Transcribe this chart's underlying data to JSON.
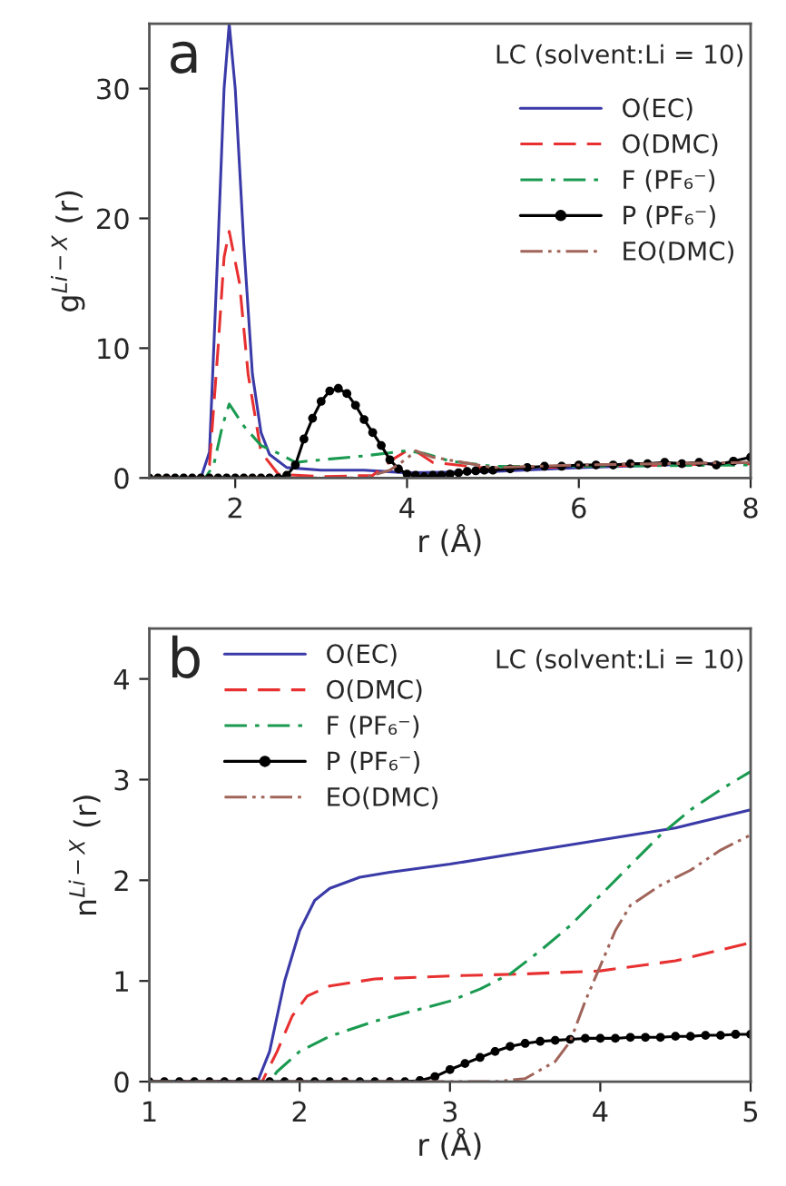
{
  "chart_data": [
    {
      "type": "line",
      "xlabel": "r (Å)",
      "ylabel": "g$^{Li−X}$ (r)",
      "xlim": [
        1,
        8
      ],
      "ylim": [
        0,
        35
      ],
      "xticks": [
        2,
        4,
        6,
        8
      ],
      "yticks": [
        0,
        10,
        20,
        30
      ],
      "grid": false,
      "legend": "top right",
      "annotations": [
        "a",
        "LC (solvent:Li = 10)"
      ],
      "series": [
        {
          "name": "O(EC)",
          "color": "#3a3aa8",
          "line_style": "solid",
          "marker": "none",
          "x": [
            1,
            1.6,
            1.7,
            1.8,
            1.87,
            1.93,
            2.0,
            2.1,
            2.2,
            2.3,
            2.4,
            2.6,
            3.0,
            3.5,
            4.0,
            5.0,
            6.0,
            7.0,
            8.0
          ],
          "values": [
            0,
            0,
            2,
            18,
            30,
            35,
            30,
            18,
            8,
            3.5,
            1.8,
            0.8,
            0.6,
            0.6,
            0.4,
            0.5,
            0.8,
            1.0,
            1.2
          ]
        },
        {
          "name": "O(DMC)",
          "color": "#e83030",
          "line_style": "dashed",
          "marker": "none",
          "x": [
            1,
            1.6,
            1.7,
            1.8,
            1.87,
            1.93,
            2.05,
            2.15,
            2.3,
            2.5,
            3.0,
            3.6,
            3.85,
            4.05,
            4.3,
            5.0,
            6.0,
            8.0
          ],
          "values": [
            0,
            0,
            1,
            10,
            17,
            19,
            15,
            8,
            2,
            0.3,
            0.1,
            0.2,
            1.5,
            2.3,
            1.2,
            0.7,
            0.9,
            1.1
          ]
        },
        {
          "name": "F (PF₆⁻)",
          "color": "#1a9a50",
          "line_style": "dashdot",
          "marker": "none",
          "x": [
            1,
            1.65,
            1.75,
            1.85,
            1.93,
            2.1,
            2.3,
            2.5,
            2.7,
            3.0,
            3.5,
            4.0,
            4.2,
            4.5,
            5.0,
            6.0,
            8.0
          ],
          "values": [
            0,
            0,
            1,
            4,
            5.7,
            4,
            2.5,
            1.9,
            1.2,
            1.4,
            1.7,
            2.1,
            1.9,
            1.3,
            0.9,
            0.9,
            1.0
          ]
        },
        {
          "name": "P (PF₆⁻)",
          "color": "#000000",
          "line_style": "solid",
          "marker": "circle",
          "x": [
            1.0,
            1.1,
            1.2,
            1.3,
            1.4,
            1.5,
            1.6,
            1.7,
            1.8,
            1.9,
            2.0,
            2.1,
            2.2,
            2.3,
            2.4,
            2.5,
            2.6,
            2.7,
            2.8,
            2.9,
            3.0,
            3.1,
            3.2,
            3.3,
            3.4,
            3.5,
            3.6,
            3.7,
            3.8,
            3.9,
            4.0,
            4.1,
            4.2,
            4.3,
            4.4,
            4.5,
            4.6,
            4.7,
            4.8,
            4.9,
            5.0,
            5.2,
            5.4,
            5.6,
            5.8,
            6.0,
            6.2,
            6.4,
            6.6,
            6.8,
            7.0,
            7.2,
            7.4,
            7.6,
            7.8,
            8.0
          ],
          "values": [
            0,
            0,
            0,
            0,
            0,
            0,
            0,
            0,
            0,
            0,
            0,
            0,
            0,
            0,
            0,
            0,
            0.2,
            1.0,
            3.0,
            4.6,
            5.9,
            6.7,
            6.9,
            6.5,
            5.6,
            4.5,
            3.5,
            2.5,
            1.4,
            0.7,
            0.3,
            0.2,
            0.1,
            0.2,
            0.2,
            0.3,
            0.4,
            0.5,
            0.55,
            0.6,
            0.6,
            0.7,
            0.8,
            0.9,
            0.9,
            1.0,
            1.0,
            1.0,
            1.1,
            1.1,
            1.2,
            1.1,
            1.2,
            1.0,
            1.3,
            1.6
          ]
        },
        {
          "name": "EO(DMC)",
          "color": "#a0645a",
          "line_style": "dashdotdot",
          "marker": "none",
          "x": [
            1,
            3.5,
            3.8,
            4.0,
            4.1,
            4.3,
            5.0,
            6.0,
            8.0
          ],
          "values": [
            0,
            0,
            0.6,
            1.5,
            2.1,
            1.6,
            0.8,
            1.0,
            1.2
          ]
        }
      ]
    },
    {
      "type": "line",
      "xlabel": "r (Å)",
      "ylabel": "n$^{Li−X}$ (r)",
      "xlim": [
        1,
        5
      ],
      "ylim": [
        0,
        4.5
      ],
      "xticks": [
        1,
        2,
        3,
        4,
        5
      ],
      "yticks": [
        0,
        1,
        2,
        3,
        4
      ],
      "grid": false,
      "legend": "top left",
      "annotations": [
        "b",
        "LC (solvent:Li = 10)"
      ],
      "series": [
        {
          "name": "O(EC)",
          "color": "#3a3aa8",
          "line_style": "solid",
          "marker": "none",
          "x": [
            1,
            1.72,
            1.8,
            1.9,
            2.0,
            2.1,
            2.2,
            2.4,
            2.6,
            3.0,
            3.5,
            4.0,
            4.5,
            5.0
          ],
          "values": [
            0,
            0,
            0.3,
            1.0,
            1.5,
            1.8,
            1.92,
            2.03,
            2.08,
            2.16,
            2.28,
            2.4,
            2.52,
            2.7
          ]
        },
        {
          "name": "O(DMC)",
          "color": "#e83030",
          "line_style": "dashed",
          "marker": "none",
          "x": [
            1,
            1.75,
            1.85,
            1.95,
            2.05,
            2.2,
            2.5,
            3.0,
            3.5,
            4.0,
            4.5,
            5.0
          ],
          "values": [
            0,
            0,
            0.3,
            0.65,
            0.85,
            0.95,
            1.02,
            1.05,
            1.07,
            1.1,
            1.2,
            1.38
          ]
        },
        {
          "name": "F (PF₆⁻)",
          "color": "#1a9a50",
          "line_style": "dashdot",
          "marker": "none",
          "x": [
            1,
            1.8,
            1.85,
            2.0,
            2.2,
            2.5,
            2.8,
            3.0,
            3.2,
            3.4,
            3.6,
            3.8,
            4.0,
            4.2,
            4.4,
            4.6,
            4.8,
            5.0
          ],
          "values": [
            0,
            0,
            0.1,
            0.3,
            0.45,
            0.6,
            0.72,
            0.8,
            0.92,
            1.07,
            1.3,
            1.55,
            1.85,
            2.15,
            2.45,
            2.7,
            2.9,
            3.08
          ]
        },
        {
          "name": "P (PF₆⁻)",
          "color": "#000000",
          "line_style": "solid",
          "marker": "circle",
          "x": [
            1.0,
            1.1,
            1.2,
            1.3,
            1.4,
            1.5,
            1.6,
            1.7,
            1.8,
            1.9,
            2.0,
            2.1,
            2.2,
            2.3,
            2.4,
            2.5,
            2.6,
            2.7,
            2.8,
            2.9,
            3.0,
            3.1,
            3.2,
            3.3,
            3.4,
            3.5,
            3.6,
            3.7,
            3.8,
            3.9,
            4.0,
            4.1,
            4.2,
            4.3,
            4.4,
            4.5,
            4.6,
            4.7,
            4.8,
            4.9,
            5.0
          ],
          "values": [
            0,
            0,
            0,
            0,
            0,
            0,
            0,
            0,
            0,
            0,
            0,
            0,
            0,
            0,
            0,
            0,
            0,
            0,
            0.01,
            0.05,
            0.12,
            0.18,
            0.24,
            0.3,
            0.35,
            0.38,
            0.4,
            0.41,
            0.42,
            0.43,
            0.43,
            0.43,
            0.44,
            0.44,
            0.44,
            0.45,
            0.45,
            0.46,
            0.46,
            0.47,
            0.47
          ]
        },
        {
          "name": "EO(DMC)",
          "color": "#a0645a",
          "line_style": "dashdotdot",
          "marker": "none",
          "x": [
            1,
            3.3,
            3.5,
            3.7,
            3.8,
            3.9,
            4.0,
            4.1,
            4.2,
            4.4,
            4.6,
            4.8,
            5.0
          ],
          "values": [
            0,
            0,
            0.03,
            0.2,
            0.4,
            0.8,
            1.15,
            1.5,
            1.75,
            1.95,
            2.1,
            2.3,
            2.45
          ]
        }
      ]
    }
  ]
}
